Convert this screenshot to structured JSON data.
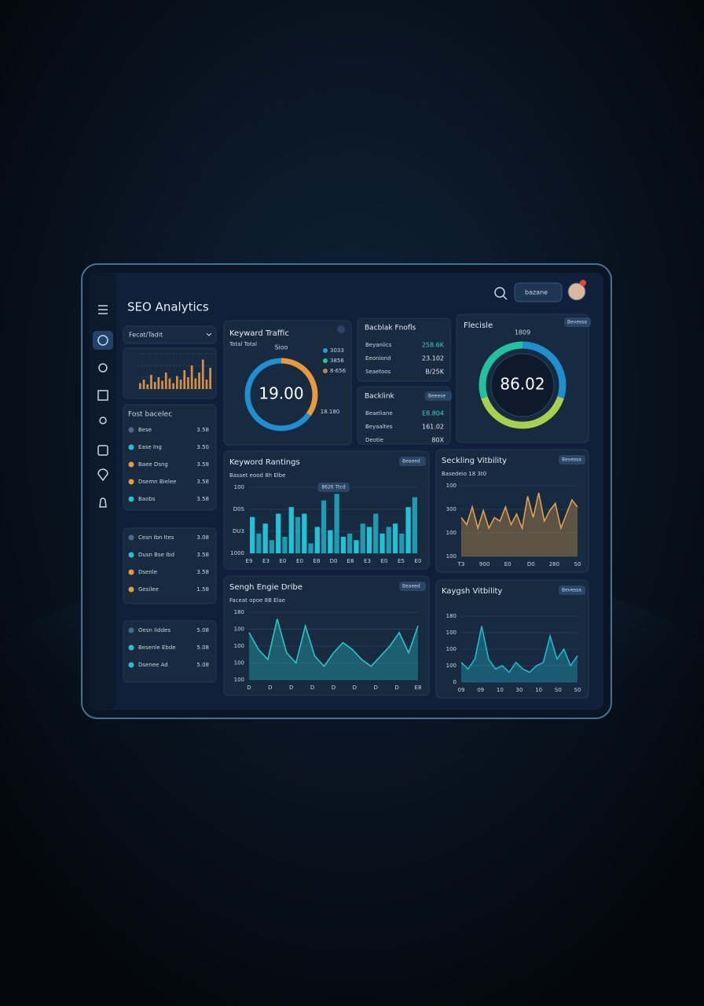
{
  "header": {
    "title": "SEO Analytics",
    "search_label": "bazane"
  },
  "filter": {
    "label": "Fecat/Tadit"
  },
  "mini_chart": {
    "values": [
      5,
      8,
      4,
      12,
      6,
      10,
      7,
      14,
      9,
      5,
      11,
      8,
      16,
      10,
      20,
      9,
      14,
      25,
      8,
      18
    ],
    "ylim": [
      0,
      30
    ],
    "color": "#d4904a"
  },
  "lists": [
    {
      "title": "Fost bacelec",
      "items": [
        {
          "label": "Bese",
          "value": "3.58",
          "color": "#4a6a8a"
        },
        {
          "label": "Ease Ing",
          "value": "3.50",
          "color": "#22c1d6"
        },
        {
          "label": "Baee Dsng",
          "value": "3.58",
          "color": "#e89a3c"
        },
        {
          "label": "Dsemn Bielee",
          "value": "3.58",
          "color": "#e89a3c"
        },
        {
          "label": "Baobs",
          "value": "3.58",
          "color": "#22c1d6"
        }
      ]
    },
    {
      "title": "",
      "items": [
        {
          "label": "Cesn Ibn Ites",
          "value": "3.08",
          "color": "#4a6a8a"
        },
        {
          "label": "Dusn Bse Ibd",
          "value": "3.58",
          "color": "#22c1d6"
        },
        {
          "label": "Dsenle",
          "value": "3.58",
          "color": "#e89a3c"
        },
        {
          "label": "Gesilee",
          "value": "1.58",
          "color": "#e89a3c"
        }
      ]
    },
    {
      "title": "",
      "items": [
        {
          "label": "Oesn Iiddes",
          "value": "5.08",
          "color": "#4a6a8a"
        },
        {
          "label": "Besenle Ebde",
          "value": "5.08",
          "color": "#22c1d6"
        },
        {
          "label": "Dsenee Ad",
          "value": "5.08",
          "color": "#22c1d6"
        }
      ]
    }
  ],
  "traffic": {
    "title": "Keyward Traffic",
    "subtitle": "Total Total",
    "top_label": "Sioo",
    "value": "19.00",
    "side_label": "18.180",
    "segments": [
      {
        "value": 35,
        "color": "#e89a3c"
      },
      {
        "value": 65,
        "color": "#1f8fd0"
      }
    ],
    "legend": [
      {
        "label": "3033",
        "color": "#1fa3d9"
      },
      {
        "label": "3856",
        "color": "#2bc48a"
      },
      {
        "label": "8·656",
        "color": "#b08a5a"
      }
    ]
  },
  "backlink_profile": {
    "title": "Bacblak Fnofls",
    "rows": [
      {
        "label": "Beyaniics",
        "value": "258.6K"
      },
      {
        "label": "Eeoniond",
        "value": "23.102"
      },
      {
        "label": "Seaetoos",
        "value": "B/25K"
      }
    ]
  },
  "backlink": {
    "title": "Backlink",
    "button": "Beeese",
    "rows": [
      {
        "label": "Beaeliane",
        "value": "E8.804"
      },
      {
        "label": "Beyaaltes",
        "value": "161.02"
      },
      {
        "label": "Deotie",
        "value": "80X"
      }
    ]
  },
  "score": {
    "title": "Flecisle",
    "button": "Bevessa",
    "top_label": "1809",
    "value": "86.02",
    "segments": [
      {
        "value": 30,
        "color": "#1f8fd0"
      },
      {
        "value": 40,
        "color": "#a8d050"
      },
      {
        "value": 30,
        "color": "#22c1a0"
      }
    ]
  },
  "charts": [
    {
      "kind": "bar",
      "title": "Keyword Rantings",
      "subtitle": "Basset eood  8h Elbe",
      "button": "Beaeed",
      "tooltip": "8626 Ttcd",
      "y_labels": [
        "100",
        "D0S",
        "DU3",
        "1000"
      ],
      "x_labels": [
        "E9",
        "E3",
        "E0",
        "E0",
        "E8",
        "D0",
        "E8",
        "E3",
        "E0",
        "E5",
        "E0"
      ],
      "values": [
        55,
        30,
        45,
        20,
        60,
        25,
        70,
        55,
        60,
        15,
        40,
        80,
        35,
        90,
        25,
        30,
        20,
        45,
        40,
        60,
        30,
        40,
        45,
        30,
        70,
        85
      ],
      "ylim": [
        0,
        100
      ],
      "color": "#22c1d6"
    },
    {
      "kind": "area",
      "title": "Seckling Vitbility",
      "subtitle": "Basedeio  18 3t0",
      "button": "Bevessa",
      "y_labels": [
        "100",
        "300",
        "100",
        "100"
      ],
      "x_labels": [
        "T3",
        "900",
        "E0",
        "D0",
        "280",
        "S0"
      ],
      "values": [
        55,
        45,
        70,
        40,
        65,
        40,
        55,
        50,
        70,
        45,
        60,
        40,
        85,
        55,
        90,
        50,
        65,
        75,
        40,
        60,
        80,
        70
      ],
      "ylim": [
        0,
        100
      ],
      "color": "#e0a050"
    },
    {
      "kind": "area",
      "title": "Sengh Engie Dribe",
      "subtitle": "Faceat opoe  8B Elae",
      "button": "Beaeed",
      "y_labels": [
        "180",
        "100",
        "100",
        "100",
        "100"
      ],
      "x_labels": [
        "D",
        "D",
        "D",
        "D",
        "D",
        "D",
        "D",
        "D",
        "E8"
      ],
      "values": [
        70,
        45,
        30,
        90,
        40,
        25,
        80,
        35,
        20,
        40,
        55,
        45,
        30,
        20,
        35,
        50,
        70,
        40,
        80
      ],
      "ylim": [
        0,
        100
      ],
      "color": "#2bc4c8"
    },
    {
      "kind": "area",
      "title": "Kaygsh Vitbility",
      "subtitle": "",
      "button": "Bevessa",
      "y_labels": [
        "180",
        "100",
        "100",
        "100",
        "0"
      ],
      "x_labels": [
        "09",
        "09",
        "10",
        "30",
        "10",
        "S0",
        "S0"
      ],
      "values": [
        30,
        20,
        35,
        85,
        35,
        20,
        25,
        15,
        30,
        20,
        15,
        25,
        30,
        70,
        35,
        50,
        25,
        40
      ],
      "ylim": [
        0,
        100
      ],
      "color": "#22b8d0"
    }
  ]
}
